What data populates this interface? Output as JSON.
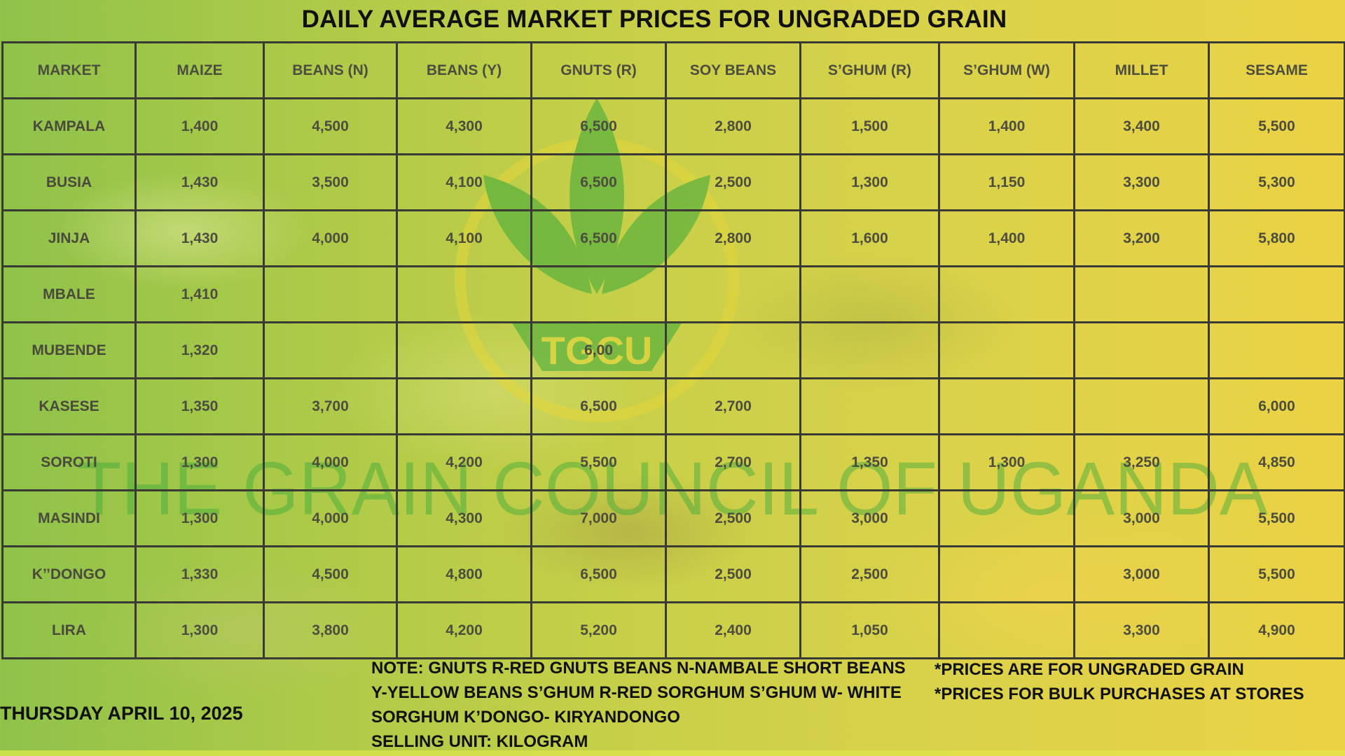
{
  "title": "DAILY AVERAGE MARKET PRICES FOR UNGRADED GRAIN",
  "table": {
    "headers": [
      "MARKET",
      "MAIZE",
      "BEANS (N)",
      "BEANS (Y)",
      "GNUTS (R)",
      "SOY BEANS",
      "S’GHUM (R)",
      "S’GHUM (W)",
      "MILLET",
      "SESAME"
    ],
    "rows": [
      [
        "KAMPALA",
        "1,400",
        "4,500",
        "4,300",
        "6,500",
        "2,800",
        "1,500",
        "1,400",
        "3,400",
        "5,500"
      ],
      [
        "BUSIA",
        "1,430",
        "3,500",
        "4,100",
        "6,500",
        "2,500",
        "1,300",
        "1,150",
        "3,300",
        "5,300"
      ],
      [
        "JINJA",
        "1,430",
        "4,000",
        "4,100",
        "6,500",
        "2,800",
        "1,600",
        "1,400",
        "3,200",
        "5,800"
      ],
      [
        "MBALE",
        "1,410",
        "",
        "",
        "",
        "",
        "",
        "",
        "",
        ""
      ],
      [
        "MUBENDE",
        "1,320",
        "",
        "",
        "6,00",
        "",
        "",
        "",
        "",
        ""
      ],
      [
        "KASESE",
        "1,350",
        "3,700",
        "",
        "6,500",
        "2,700",
        "",
        "",
        "",
        "6,000"
      ],
      [
        "SOROTI",
        "1,300",
        "4,000",
        "4,200",
        "5,500",
        "2,700",
        "1,350",
        "1,300",
        "3,250",
        "4,850"
      ],
      [
        "MASINDI",
        "1,300",
        "4,000",
        "4,300",
        "7,000",
        "2,500",
        "3,000",
        "",
        "3,000",
        "5,500"
      ],
      [
        "K’’DONGO",
        "1,330",
        "4,500",
        "4,800",
        "6,500",
        "2,500",
        "2,500",
        "",
        "3,000",
        "5,500"
      ],
      [
        "LIRA",
        "1,300",
        "3,800",
        "4,200",
        "5,200",
        "2,400",
        "1,050",
        "",
        "3,300",
        "4,900"
      ]
    ]
  },
  "watermark": {
    "logo_text": "TGCU",
    "org_name": "THE GRAIN COUNCIL OF UGANDA"
  },
  "footer": {
    "date": "THURSDAY APRIL 10, 2025",
    "note_lines": [
      "NOTE: GNUTS R-RED GNUTS  BEANS N-NAMBALE SHORT BEANS",
      "Y-YELLOW BEANS  S’GHUM R-RED SORGHUM  S’GHUM W- WHITE",
      "SORGHUM K’DONGO- KIRYANDONGO",
      "SELLING UNIT: KILOGRAM"
    ],
    "disclaimers": [
      "*PRICES ARE FOR UNGRADED GRAIN",
      "*PRICES FOR BULK PURCHASES AT STORES"
    ]
  },
  "colors": {
    "title_text": "#111111",
    "cell_text": "#4d4d3f",
    "grid_line": "#3a3a34",
    "watermark_green": "#3aa83a",
    "watermark_yellow": "#e8d23a"
  }
}
